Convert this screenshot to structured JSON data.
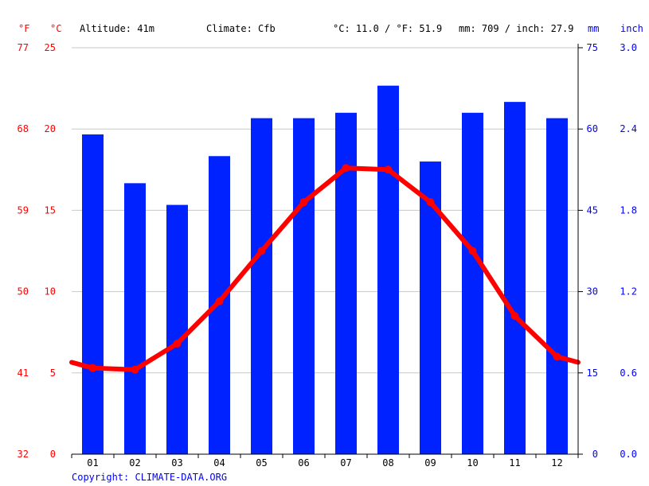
{
  "header": {
    "altitude": "Altitude: 41m",
    "climate": "Climate: Cfb",
    "temp_avg": "°C: 11.0 / °F: 51.9",
    "precip_total": "mm: 709 / inch: 27.9"
  },
  "units": {
    "fahrenheit": "°F",
    "celsius": "°C",
    "mm": "mm",
    "inch": "inch"
  },
  "copyright": "Copyright: CLIMATE-DATA.ORG",
  "colors": {
    "temperature": "#ff0000",
    "precipitation": "#0022ff",
    "grid": "#c8c8c8"
  },
  "chart_data": {
    "type": "bar",
    "categories": [
      "01",
      "02",
      "03",
      "04",
      "05",
      "06",
      "07",
      "08",
      "09",
      "10",
      "11",
      "12"
    ],
    "series": [
      {
        "type": "bar",
        "axis": "right",
        "unit": "mm",
        "values": [
          59,
          50,
          46,
          55,
          62,
          62,
          63,
          68,
          54,
          63,
          65,
          62
        ]
      },
      {
        "type": "line",
        "axis": "left",
        "unit": "°C",
        "values": [
          5.3,
          5.2,
          6.8,
          9.4,
          12.5,
          15.5,
          17.6,
          17.5,
          15.5,
          12.5,
          8.5,
          6.0
        ]
      }
    ],
    "y_left_celsius": {
      "ticks": [
        "0",
        "5",
        "10",
        "15",
        "20",
        "25"
      ],
      "range": [
        0,
        25
      ]
    },
    "y_left_fahrenheit": {
      "ticks": [
        "32",
        "41",
        "50",
        "59",
        "68",
        "77"
      ]
    },
    "y_right_mm": {
      "ticks": [
        "0",
        "15",
        "30",
        "45",
        "60",
        "75"
      ],
      "range": [
        0,
        75
      ]
    },
    "y_right_inch": {
      "ticks": [
        "0.0",
        "0.6",
        "1.2",
        "1.8",
        "2.4",
        "3.0"
      ]
    },
    "grid": true
  }
}
